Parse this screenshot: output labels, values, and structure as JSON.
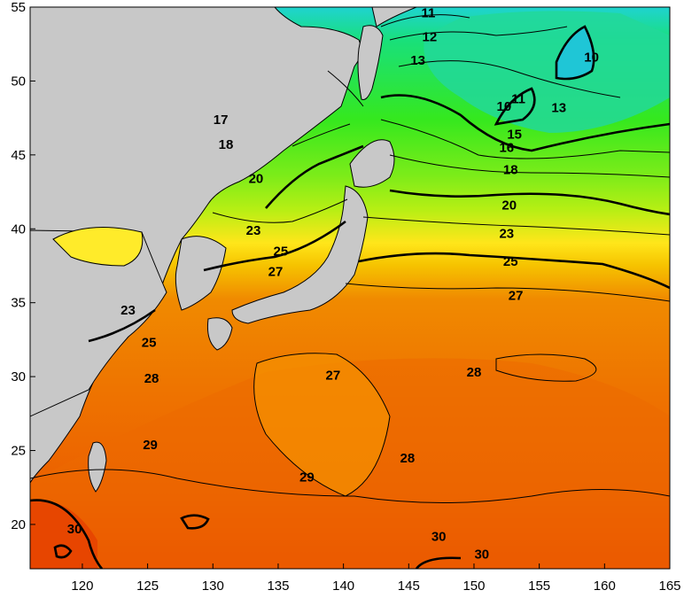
{
  "map": {
    "colors": {
      "land": "#c8c8c8",
      "sst_10": "#1fd3d0",
      "sst_13": "#19e07a",
      "sst_16": "#35e81e",
      "sst_18": "#7cec19",
      "sst_20": "#b6ef14",
      "sst_23": "#ffe61a",
      "sst_25": "#f6c300",
      "sst_27": "#f08a00",
      "sst_28": "#ee7400",
      "sst_29": "#ec6000",
      "sst_30": "#e84600",
      "contour": "#000000"
    },
    "x_axis": {
      "ticks": [
        {
          "value": 120,
          "label": "120"
        },
        {
          "value": 125,
          "label": "125"
        },
        {
          "value": 130,
          "label": "130"
        },
        {
          "value": 135,
          "label": "135"
        },
        {
          "value": 140,
          "label": "140"
        },
        {
          "value": 145,
          "label": "145"
        },
        {
          "value": 150,
          "label": "150"
        },
        {
          "value": 155,
          "label": "155"
        },
        {
          "value": 160,
          "label": "160"
        },
        {
          "value": 165,
          "label": "165"
        }
      ],
      "range": [
        116,
        165
      ]
    },
    "y_axis": {
      "ticks": [
        {
          "value": 20,
          "label": "20"
        },
        {
          "value": 25,
          "label": "25"
        },
        {
          "value": 30,
          "label": "30"
        },
        {
          "value": 35,
          "label": "35"
        },
        {
          "value": 40,
          "label": "40"
        },
        {
          "value": 45,
          "label": "45"
        },
        {
          "value": 50,
          "label": "50"
        },
        {
          "value": 55,
          "label": "55"
        }
      ],
      "range": [
        17,
        55
      ]
    },
    "contour_labels": [
      {
        "lon": 146.5,
        "lat": 54.6,
        "text": "11"
      },
      {
        "lon": 146.6,
        "lat": 53.0,
        "text": "12"
      },
      {
        "lon": 145.7,
        "lat": 51.4,
        "text": "13"
      },
      {
        "lon": 159.0,
        "lat": 51.6,
        "text": "10"
      },
      {
        "lon": 153.4,
        "lat": 48.8,
        "text": "11"
      },
      {
        "lon": 152.3,
        "lat": 48.3,
        "text": "10"
      },
      {
        "lon": 156.5,
        "lat": 48.2,
        "text": "13"
      },
      {
        "lon": 153.1,
        "lat": 46.4,
        "text": "15"
      },
      {
        "lon": 152.5,
        "lat": 45.5,
        "text": "16"
      },
      {
        "lon": 152.8,
        "lat": 44.0,
        "text": "18"
      },
      {
        "lon": 152.7,
        "lat": 41.6,
        "text": "20"
      },
      {
        "lon": 152.5,
        "lat": 39.7,
        "text": "23"
      },
      {
        "lon": 152.8,
        "lat": 37.8,
        "text": "25"
      },
      {
        "lon": 153.2,
        "lat": 35.5,
        "text": "27"
      },
      {
        "lon": 125.3,
        "lat": 29.9,
        "text": "28"
      },
      {
        "lon": 139.2,
        "lat": 30.1,
        "text": "27"
      },
      {
        "lon": 150.0,
        "lat": 30.3,
        "text": "28"
      },
      {
        "lon": 119.4,
        "lat": 19.7,
        "text": "30"
      },
      {
        "lon": 125.2,
        "lat": 25.4,
        "text": "29"
      },
      {
        "lon": 147.3,
        "lat": 19.2,
        "text": "30"
      },
      {
        "lon": 144.9,
        "lat": 24.5,
        "text": "28"
      },
      {
        "lon": 137.2,
        "lat": 23.2,
        "text": "29"
      },
      {
        "lon": 150.6,
        "lat": 18.0,
        "text": "30"
      },
      {
        "lon": 130.6,
        "lat": 47.4,
        "text": "17"
      },
      {
        "lon": 131.0,
        "lat": 45.7,
        "text": "18"
      },
      {
        "lon": 133.3,
        "lat": 43.4,
        "text": "20"
      },
      {
        "lon": 133.1,
        "lat": 39.9,
        "text": "23"
      },
      {
        "lon": 135.2,
        "lat": 38.5,
        "text": "25"
      },
      {
        "lon": 134.8,
        "lat": 37.1,
        "text": "27"
      },
      {
        "lon": 123.5,
        "lat": 34.5,
        "text": "23"
      },
      {
        "lon": 125.1,
        "lat": 32.3,
        "text": "25"
      }
    ]
  }
}
